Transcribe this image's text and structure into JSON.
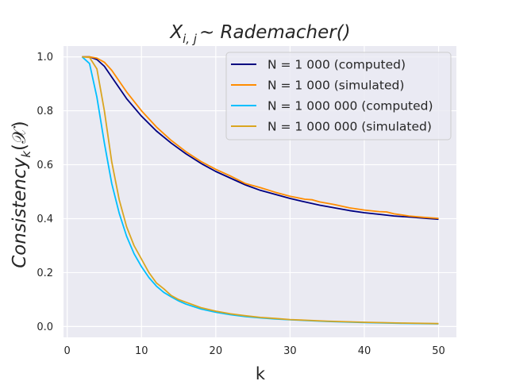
{
  "chart_data": {
    "type": "line",
    "title": "X",
    "title_subscript": "i, j",
    "title_rest": "∼ Rademacher()",
    "xlabel": "k",
    "ylabel": "Consistency",
    "ylabel_subscript": "k",
    "ylabel_rest": "(𝒳)",
    "xlim": [
      -0.5,
      52.4
    ],
    "ylim": [
      -0.04,
      1.04
    ],
    "xticks": [
      0,
      10,
      20,
      30,
      40,
      50
    ],
    "yticks": [
      0.0,
      0.2,
      0.4,
      0.6,
      0.8,
      1.0
    ],
    "xtick_labels": [
      "0",
      "10",
      "20",
      "30",
      "40",
      "50"
    ],
    "ytick_labels": [
      "0.0",
      "0.2",
      "0.4",
      "0.6",
      "0.8",
      "1.0"
    ],
    "grid": true,
    "background": "#eaeaf2",
    "legend_position": "upper right",
    "series": [
      {
        "name": "N = 1 000 (computed)",
        "color": "#000080",
        "x": [
          2,
          3,
          4,
          5,
          6,
          7,
          8,
          10,
          12,
          14,
          16,
          18,
          20,
          22,
          24,
          26,
          28,
          30,
          32,
          34,
          36,
          38,
          40,
          42,
          44,
          46,
          48,
          50
        ],
        "y": [
          1.0,
          1.0,
          0.99,
          0.965,
          0.925,
          0.885,
          0.845,
          0.78,
          0.725,
          0.68,
          0.64,
          0.605,
          0.575,
          0.55,
          0.525,
          0.505,
          0.49,
          0.475,
          0.462,
          0.45,
          0.44,
          0.43,
          0.422,
          0.416,
          0.41,
          0.406,
          0.402,
          0.398
        ]
      },
      {
        "name": "N = 1 000 (simulated)",
        "color": "#ff8c00",
        "x": [
          2,
          3,
          4,
          5,
          6,
          7,
          8,
          10,
          12,
          14,
          16,
          18,
          20,
          22,
          24,
          26,
          28,
          30,
          32,
          33,
          34,
          36,
          38,
          40,
          42,
          43,
          44,
          46,
          48,
          50
        ],
        "y": [
          1.0,
          1.0,
          0.995,
          0.98,
          0.95,
          0.91,
          0.87,
          0.8,
          0.74,
          0.69,
          0.648,
          0.612,
          0.583,
          0.558,
          0.53,
          0.515,
          0.498,
          0.483,
          0.472,
          0.47,
          0.462,
          0.452,
          0.44,
          0.432,
          0.426,
          0.425,
          0.418,
          0.41,
          0.405,
          0.401
        ]
      },
      {
        "name": "N = 1 000 000 (computed)",
        "color": "#00bfff",
        "x": [
          2,
          3,
          4,
          5,
          6,
          7,
          8,
          9,
          10,
          11,
          12,
          13,
          14,
          15,
          16,
          18,
          20,
          22,
          24,
          26,
          28,
          30,
          35,
          40,
          45,
          50
        ],
        "y": [
          1.0,
          0.975,
          0.85,
          0.68,
          0.53,
          0.42,
          0.335,
          0.27,
          0.222,
          0.182,
          0.15,
          0.127,
          0.11,
          0.095,
          0.083,
          0.065,
          0.053,
          0.044,
          0.037,
          0.032,
          0.028,
          0.025,
          0.019,
          0.015,
          0.012,
          0.01
        ]
      },
      {
        "name": "N = 1 000 000 (simulated)",
        "color": "#daa520",
        "x": [
          2,
          3,
          4,
          5,
          6,
          7,
          8,
          9,
          10,
          11,
          12,
          13,
          14,
          15,
          16,
          18,
          20,
          22,
          24,
          26,
          28,
          30,
          35,
          40,
          45,
          50
        ],
        "y": [
          1.0,
          0.998,
          0.955,
          0.8,
          0.61,
          0.47,
          0.37,
          0.3,
          0.25,
          0.2,
          0.162,
          0.14,
          0.115,
          0.1,
          0.09,
          0.07,
          0.057,
          0.047,
          0.04,
          0.034,
          0.03,
          0.026,
          0.02,
          0.016,
          0.013,
          0.011
        ]
      }
    ]
  }
}
